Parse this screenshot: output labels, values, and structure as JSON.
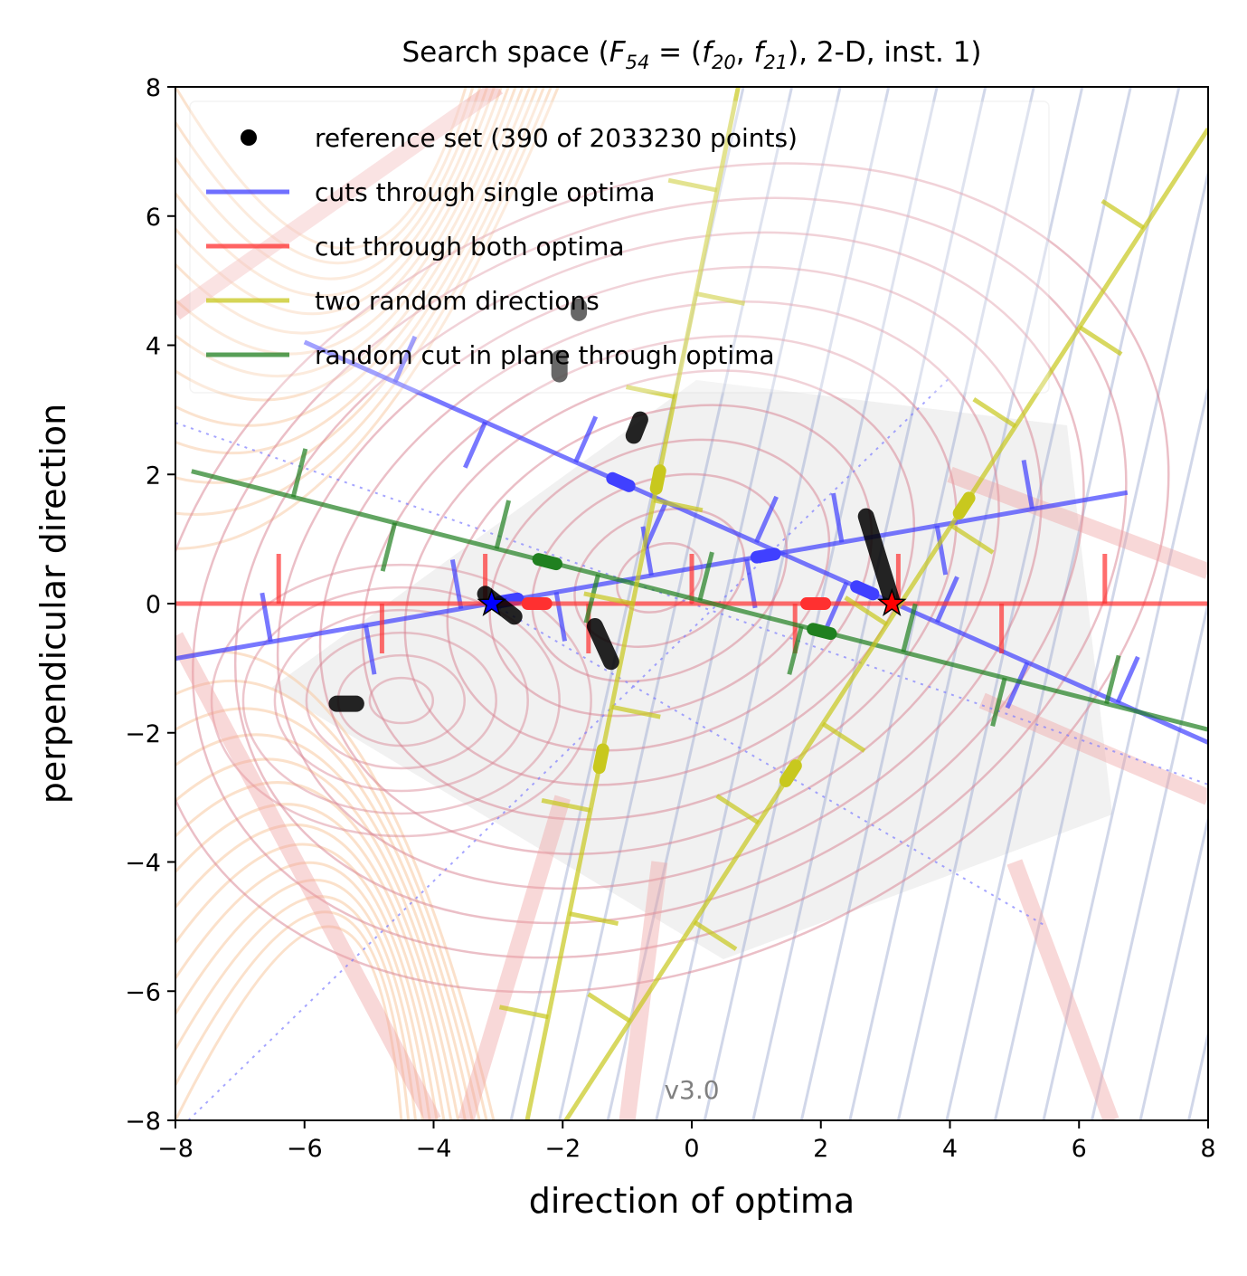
{
  "chart_data": {
    "type": "line",
    "title": "Search space (F_{54} = (f_{20}, f_{21}), 2-D, inst. 1)",
    "title_parts": {
      "prefix": "Search space (",
      "F_main": "F",
      "F_sub": "54",
      "eq": " = (",
      "f1_main": "f",
      "f1_sub": "20",
      "comma": ", ",
      "f2_main": "f",
      "f2_sub": "21",
      "suffix": "), 2-D, inst. 1)"
    },
    "xlabel": "direction of optima",
    "ylabel": "perpendicular direction",
    "xlim": [
      -8,
      8
    ],
    "ylim": [
      -8,
      8
    ],
    "x_ticks": [
      -8,
      -6,
      -4,
      -2,
      0,
      2,
      4,
      6,
      8
    ],
    "y_ticks": [
      -8,
      -6,
      -4,
      -2,
      0,
      2,
      4,
      6,
      8
    ],
    "x_tick_labels": [
      "−8",
      "−6",
      "−4",
      "−2",
      "0",
      "2",
      "4",
      "6",
      "8"
    ],
    "y_tick_labels": [
      "−8",
      "−6",
      "−4",
      "−2",
      "0",
      "2",
      "4",
      "6",
      "8"
    ],
    "grid": false,
    "legend_position": "top-left",
    "version": "v3.0",
    "colors": {
      "blue": "#4040ff",
      "red": "#ff3030",
      "yellow": "#c8c81e",
      "green": "#208020",
      "black": "#000000",
      "contour_red": "#d88090",
      "contour_orange": "#f8c8a0",
      "contour_blue": "#9aa8d0"
    },
    "legend": [
      {
        "label": "reference set (390 of 2033230 points)",
        "kind": "marker",
        "color": "#000000"
      },
      {
        "label": "cuts through single optima",
        "kind": "line",
        "color": "#4040ff"
      },
      {
        "label": "cut through both optima",
        "kind": "line",
        "color": "#ff3030"
      },
      {
        "label": "two random directions",
        "kind": "line",
        "color": "#c8c81e"
      },
      {
        "label": "random cut in plane through optima",
        "kind": "line",
        "color": "#208020"
      }
    ],
    "optima": [
      {
        "x": -3.1,
        "y": 0.0,
        "color": "#0000ff"
      },
      {
        "x": 3.1,
        "y": 0.0,
        "color": "#ff0000"
      }
    ],
    "series": [
      {
        "name": "cuts through single optima",
        "color": "#4040ff",
        "x": [
          -8,
          6.75
        ],
        "y": [
          -0.85,
          1.72
        ]
      },
      {
        "name": "cuts through single optima",
        "color": "#4040ff",
        "x": [
          -6,
          8
        ],
        "y": [
          4.05,
          -2.15
        ]
      },
      {
        "name": "cut through both optima",
        "color": "#ff3030",
        "x": [
          -8,
          8
        ],
        "y": [
          0.0,
          0.0
        ]
      },
      {
        "name": "random cut in plane through optima",
        "color": "#208020",
        "x": [
          -7.75,
          8
        ],
        "y": [
          2.05,
          -1.95
        ]
      },
      {
        "name": "two random directions",
        "color": "#c8c81e",
        "x": [
          -2.55,
          0.72
        ],
        "y": [
          -8.0,
          8.0
        ]
      },
      {
        "name": "two random directions",
        "color": "#c8c81e",
        "x": [
          -1.95,
          8
        ],
        "y": [
          -8.0,
          7.35
        ]
      }
    ],
    "reference_clusters": [
      {
        "x": [
          -5.5,
          -5.2
        ],
        "y": [
          -1.55,
          -1.55
        ]
      },
      {
        "x": [
          -1.75,
          -1.75
        ],
        "y": [
          4.5,
          4.6
        ]
      },
      {
        "x": [
          -2.05,
          -2.05
        ],
        "y": [
          3.55,
          3.8
        ]
      },
      {
        "x": [
          -0.9,
          -0.8
        ],
        "y": [
          2.6,
          2.85
        ]
      },
      {
        "x": [
          -1.5,
          -1.25
        ],
        "y": [
          -0.35,
          -0.9
        ]
      },
      {
        "x": [
          -3.2,
          -2.75
        ],
        "y": [
          0.15,
          -0.2
        ]
      },
      {
        "x": [
          2.7,
          3.1
        ],
        "y": [
          1.35,
          0.05
        ]
      }
    ]
  }
}
